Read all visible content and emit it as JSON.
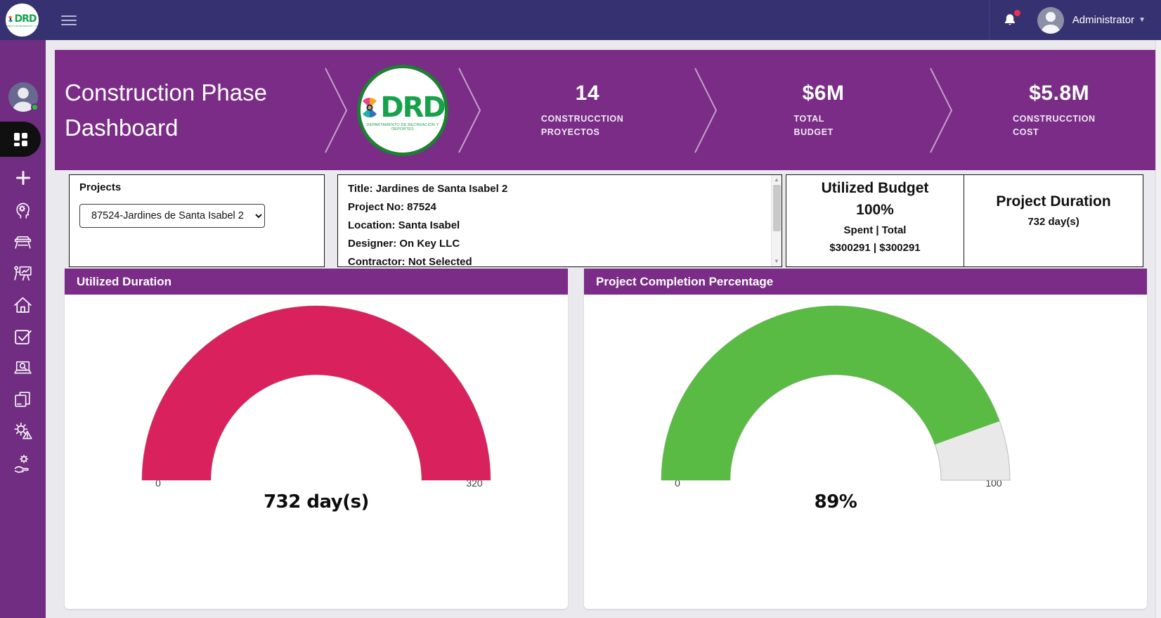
{
  "navbar": {
    "brand_text": "DRD",
    "user_label": "Administrator"
  },
  "sidebar": {
    "items": [
      {
        "icon": "user-avatar-icon",
        "status": "online"
      },
      {
        "icon": "dashboard-grid-icon",
        "active": true
      },
      {
        "icon": "plus-icon"
      },
      {
        "icon": "head-gear-icon"
      },
      {
        "icon": "bench-icon"
      },
      {
        "icon": "presentation-icon"
      },
      {
        "icon": "home-icon"
      },
      {
        "icon": "checkbox-icon"
      },
      {
        "icon": "laptop-search-icon"
      },
      {
        "icon": "documents-icon"
      },
      {
        "icon": "gear-alert-icon"
      },
      {
        "icon": "hand-gear-icon"
      }
    ]
  },
  "banner": {
    "title": "Construction Phase Dashboard",
    "logo": {
      "text": "DRD",
      "caption": "DEPARTAMENTO DE RECREACIÓN Y DEPORTES"
    },
    "stats": [
      {
        "value": "14",
        "label": "CONSTRUCCTION PROYECTOS"
      },
      {
        "value": "$6M",
        "label": "TOTAL BUDGET"
      },
      {
        "value": "$5.8M",
        "label": "CONSTRUCCTION COST"
      }
    ]
  },
  "projects_panel": {
    "label": "Projects",
    "selected": "87524-Jardines de Santa Isabel 2"
  },
  "project_info": {
    "lines": [
      "Title: Jardines de Santa Isabel 2",
      "Project No: 87524",
      "Location: Santa Isabel",
      "Designer: On Key LLC",
      "Contractor: Not Selected"
    ]
  },
  "budget_panel": {
    "title": "Utilized Budget",
    "percent": "100%",
    "sub": "Spent | Total",
    "amounts": "$300291 | $300291"
  },
  "duration_panel": {
    "title": "Project Duration",
    "value": "732 day(s)"
  },
  "chart_data": [
    {
      "type": "gauge",
      "title": "Utilized Duration",
      "min": 0,
      "max": 320,
      "value": 732,
      "display": "732 day(s)",
      "axis_labels": [
        "0",
        "320"
      ],
      "color": "#d9215d",
      "track_color": "#e9e9e9",
      "track_border": "#bdbdbd"
    },
    {
      "type": "gauge",
      "title": "Project Completion Percentage",
      "min": 0,
      "max": 100,
      "value": 89,
      "display": "89%",
      "axis_labels": [
        "0",
        "100"
      ],
      "color": "#5abb44",
      "track_color": "#e9e9e9",
      "track_border": "#bdbdbd"
    }
  ],
  "colors": {
    "navbar_bg": "#363170",
    "sidebar_bg": "#712d81",
    "banner_bg": "#7a2c86",
    "header_bg": "#7a2c86",
    "page_bg": "#e9e9ee",
    "notification_red": "#e8304f",
    "online_green": "#25c33b",
    "logo_green": "#17a14c"
  }
}
